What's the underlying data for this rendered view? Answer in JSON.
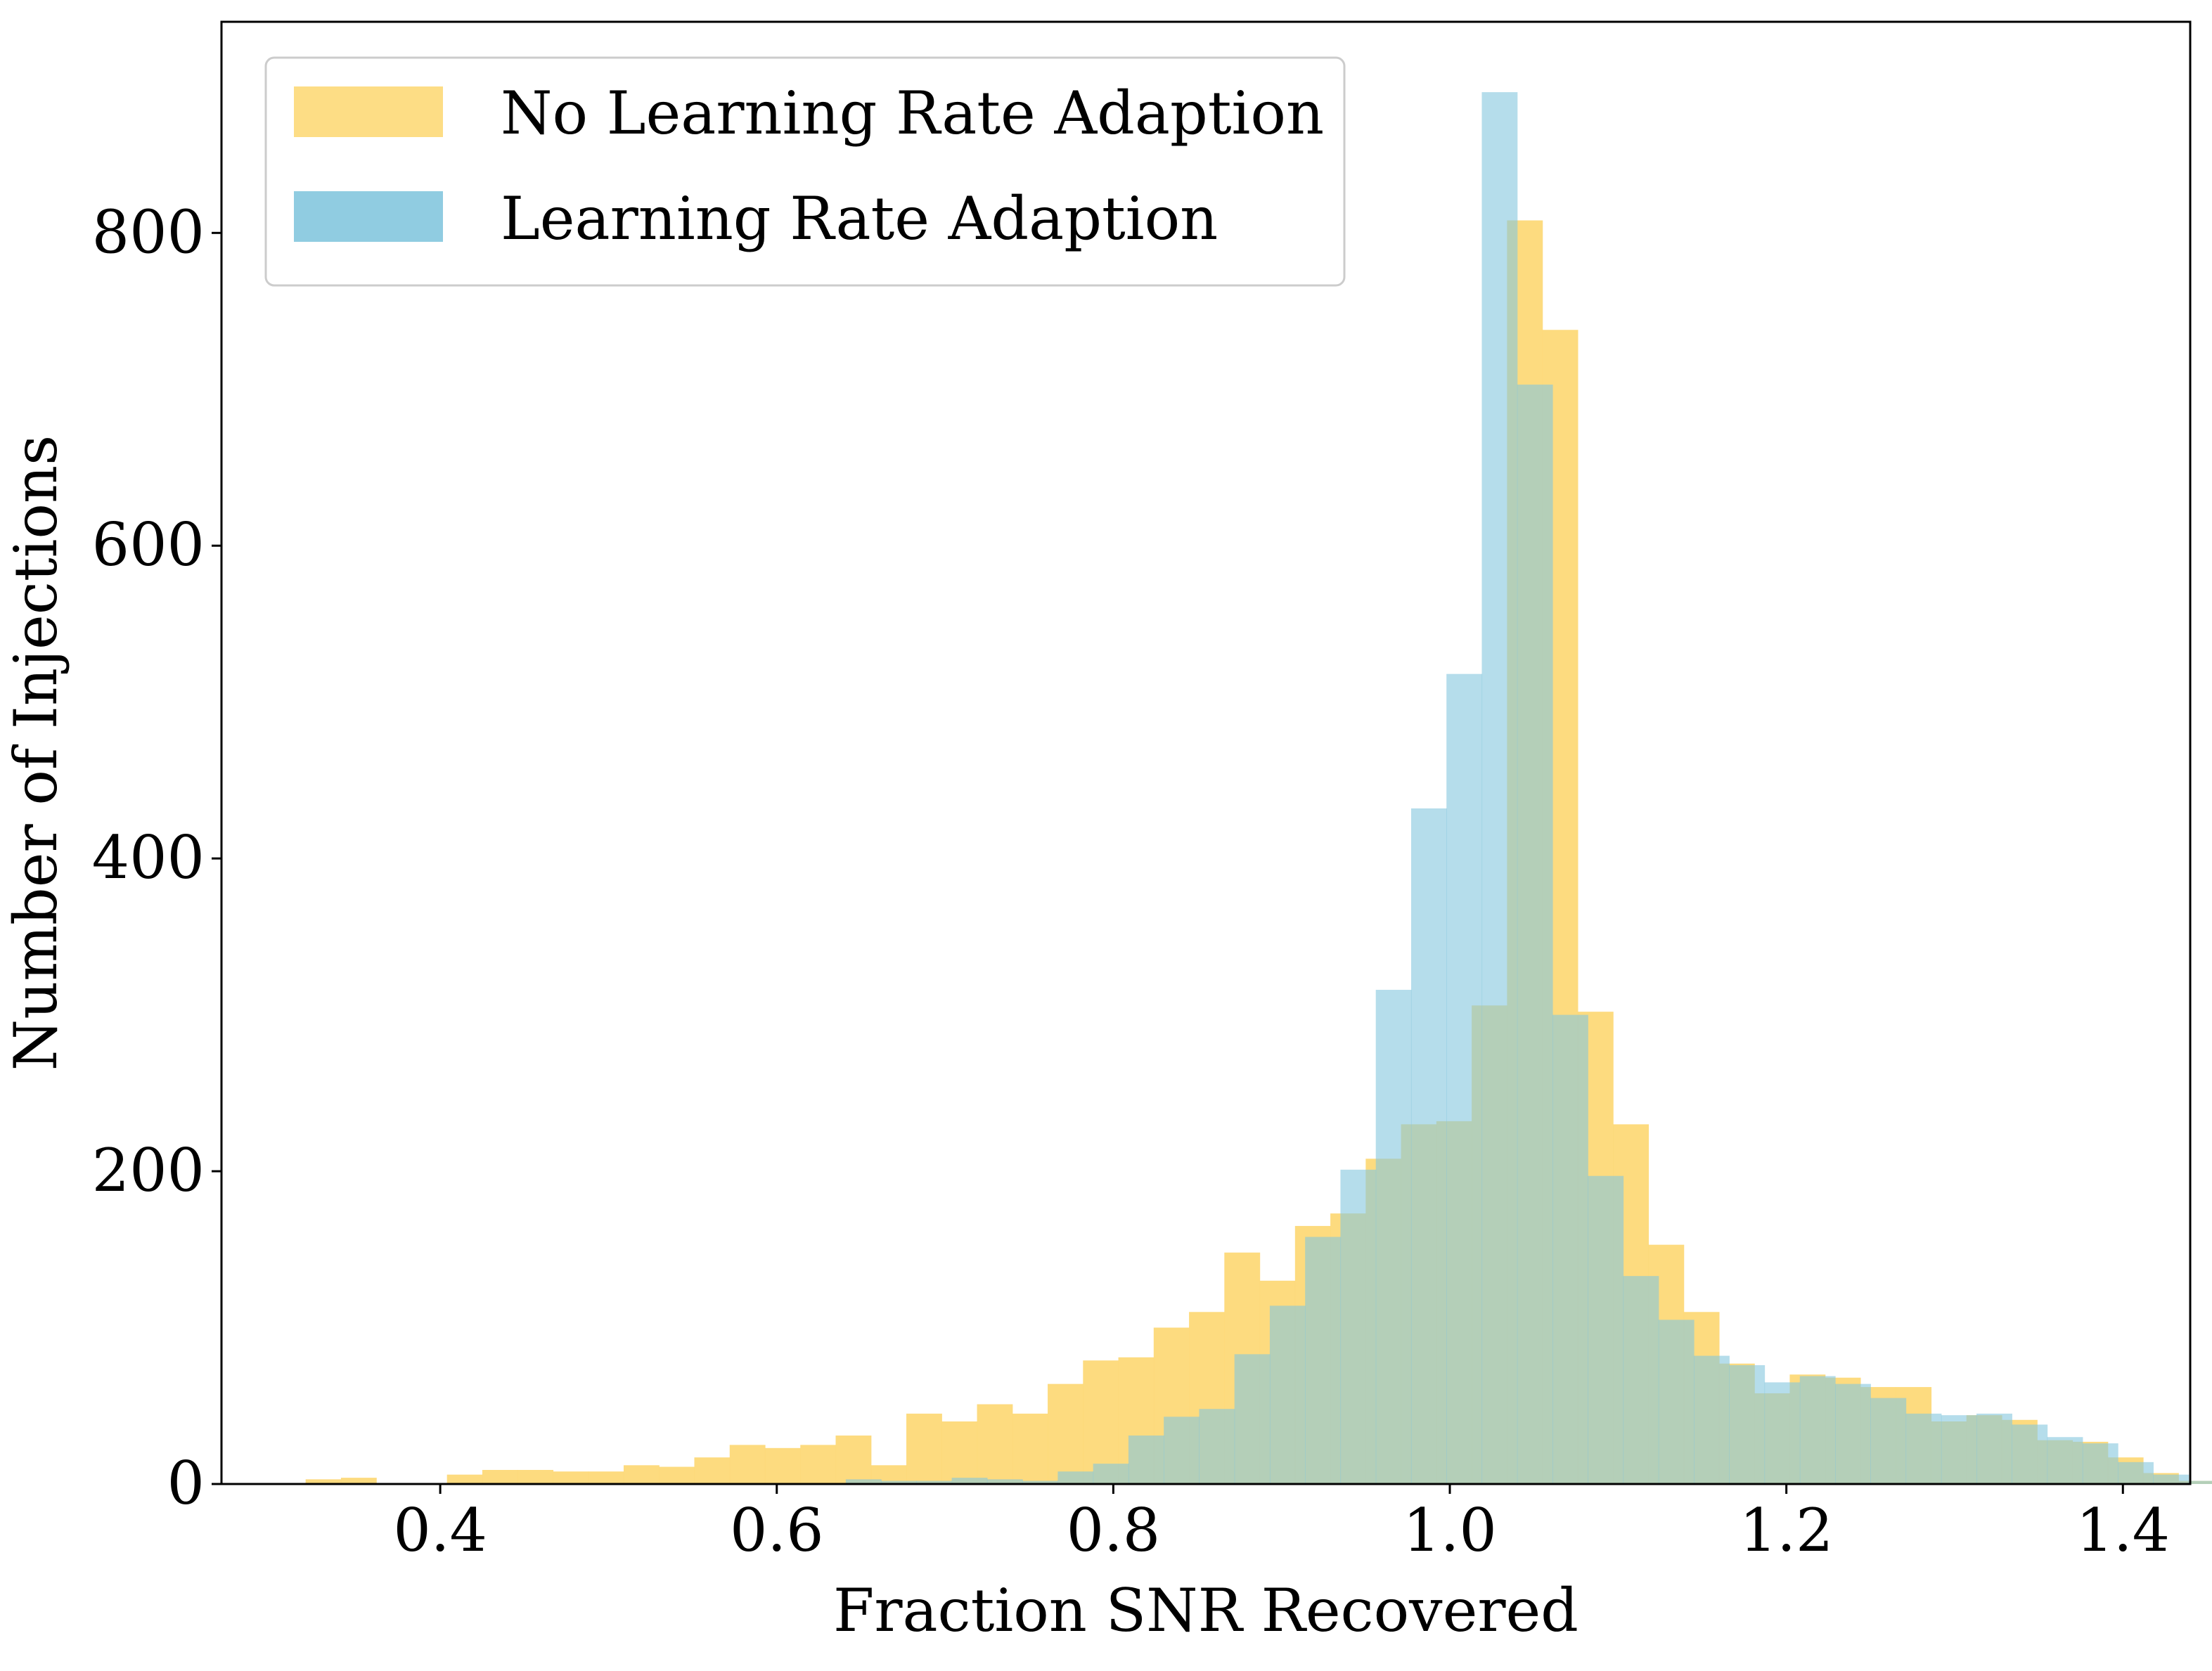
{
  "chart_data": {
    "type": "histogram",
    "xlabel": "Fraction SNR Recovered",
    "ylabel": "Number of Injections",
    "xlim": [
      0.27,
      1.44
    ],
    "ylim": [
      0,
      935
    ],
    "xticks": [
      0.4,
      0.6,
      0.8,
      1.0,
      1.2,
      1.4
    ],
    "xtick_labels": [
      "0.4",
      "0.6",
      "0.8",
      "1.0",
      "1.2",
      "1.4"
    ],
    "yticks": [
      0,
      200,
      400,
      600,
      800
    ],
    "ytick_labels": [
      "0",
      "200",
      "400",
      "600",
      "800"
    ],
    "legend_position": "upper-left",
    "series": [
      {
        "name": "No Learning Rate Adaption",
        "color": "#fdd978",
        "bin_start": 0.32,
        "bin_width": 0.021,
        "values": [
          3,
          4,
          0,
          0,
          6,
          9,
          9,
          8,
          8,
          12,
          11,
          17,
          25,
          23,
          25,
          31,
          12,
          45,
          40,
          51,
          45,
          64,
          79,
          81,
          100,
          110,
          148,
          130,
          165,
          173,
          208,
          230,
          232,
          306,
          808,
          738,
          302,
          230,
          153,
          110,
          77,
          58,
          70,
          68,
          62,
          62,
          40,
          44,
          41,
          28,
          27,
          17,
          7,
          2,
          0,
          0,
          0
        ]
      },
      {
        "name": "Learning Rate Adaption",
        "color": "#84c6de",
        "bin_start": 0.62,
        "bin_width": 0.021,
        "values": [
          0,
          3,
          2,
          2,
          4,
          3,
          2,
          8,
          13,
          31,
          43,
          48,
          83,
          114,
          158,
          201,
          316,
          432,
          518,
          890,
          703,
          300,
          197,
          133,
          105,
          82,
          76,
          65,
          69,
          64,
          55,
          45,
          44,
          45,
          38,
          30,
          26,
          14,
          6,
          2,
          3
        ]
      }
    ]
  }
}
